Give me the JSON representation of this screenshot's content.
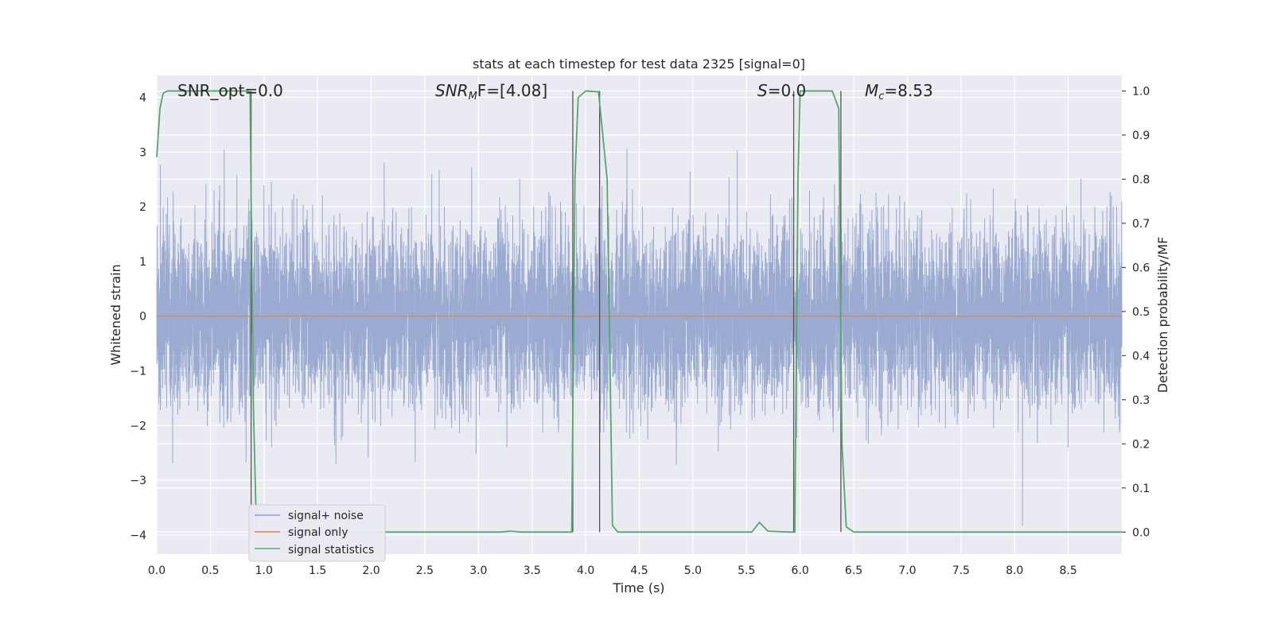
{
  "chart_data": {
    "type": "line",
    "title": "stats at each timestep for test data 2325 [signal=0]",
    "xlabel": "Time (s)",
    "ylabel_left": "Whitened strain",
    "ylabel_right": "Detection probability/MF",
    "xlim": [
      0,
      9.0
    ],
    "ylim_left": [
      -4.35,
      4.4
    ],
    "ylim_right": [
      -0.05,
      1.035
    ],
    "x_ticks": [
      "0.0",
      "0.5",
      "1.0",
      "1.5",
      "2.0",
      "2.5",
      "3.0",
      "3.5",
      "4.0",
      "4.5",
      "5.0",
      "5.5",
      "6.0",
      "6.5",
      "7.0",
      "7.5",
      "8.0",
      "8.5"
    ],
    "y_ticks_left": [
      "4",
      "3",
      "2",
      "1",
      "0",
      "−1",
      "−2",
      "−3",
      "−4"
    ],
    "y_ticks_right": [
      "1.0",
      "0.9",
      "0.8",
      "0.7",
      "0.6",
      "0.5",
      "0.4",
      "0.3",
      "0.2",
      "0.1",
      "0.0"
    ],
    "grid": true,
    "legend_position": "lower-left",
    "annotations": {
      "snr_opt": "SNR_opt=0.0",
      "snr_mf_main": "SNR",
      "snr_mf_sub": "M",
      "snr_mf_rest": "F=[4.08]",
      "s_main": "S",
      "s_rest": "=0.0",
      "mc_main": "M",
      "mc_sub": "c",
      "mc_rest": "=8.53"
    },
    "series": [
      {
        "name": "signal+ noise",
        "color": "#8c9fcb",
        "axis": "left",
        "description_values": "white noise, std ~0.8, peaks up to about ±3.5"
      },
      {
        "name": "signal only",
        "color": "#dd8452",
        "axis": "left",
        "values_constant": 0
      },
      {
        "name": "signal statistics",
        "color": "#55a868",
        "axis": "right",
        "points": [
          [
            0.0,
            0.85
          ],
          [
            0.03,
            0.96
          ],
          [
            0.06,
            0.995
          ],
          [
            0.1,
            1.0
          ],
          [
            0.84,
            1.0
          ],
          [
            0.87,
            0.998
          ],
          [
            0.9,
            0.3
          ],
          [
            0.93,
            0.0
          ],
          [
            3.2,
            0.0
          ],
          [
            3.3,
            0.002
          ],
          [
            3.4,
            0.0
          ],
          [
            3.85,
            0.0
          ],
          [
            3.87,
            0.0
          ],
          [
            3.9,
            0.8
          ],
          [
            3.93,
            0.985
          ],
          [
            4.0,
            1.0
          ],
          [
            4.12,
            0.998
          ],
          [
            4.2,
            0.8
          ],
          [
            4.25,
            0.015
          ],
          [
            4.3,
            0.0
          ],
          [
            5.55,
            0.0
          ],
          [
            5.62,
            0.022
          ],
          [
            5.7,
            0.002
          ],
          [
            5.9,
            0.0
          ],
          [
            5.95,
            0.0
          ],
          [
            5.98,
            0.8
          ],
          [
            6.0,
            1.0
          ],
          [
            6.3,
            1.0
          ],
          [
            6.36,
            0.96
          ],
          [
            6.39,
            0.2
          ],
          [
            6.43,
            0.012
          ],
          [
            6.5,
            0.0
          ],
          [
            9.0,
            0.0
          ]
        ]
      }
    ],
    "vertical_markers_x": [
      0.88,
      3.88,
      4.13,
      5.94,
      6.38
    ]
  }
}
